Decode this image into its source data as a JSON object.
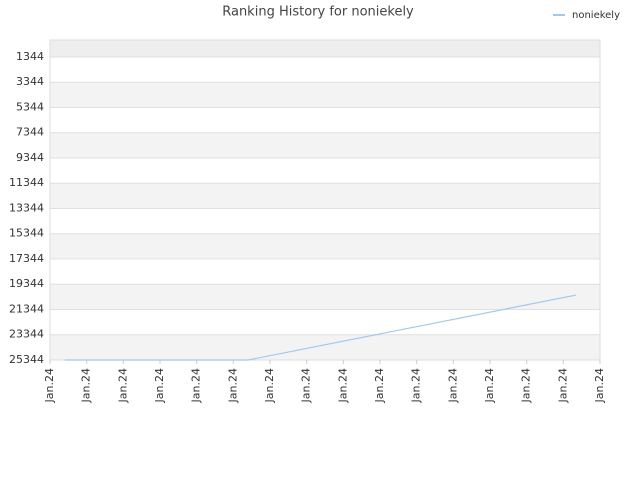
{
  "chart_data": {
    "type": "line",
    "title": "Ranking History for noniekely",
    "x": [
      0.4,
      5.4,
      14.35
    ],
    "series": [
      {
        "name": "noniekely",
        "color": "#a0c8f0",
        "values": [
          25344,
          25344,
          20200
        ]
      }
    ],
    "xlim": [
      0,
      15
    ],
    "xticks": [
      {
        "value": 0,
        "label": "Jan.24"
      },
      {
        "value": 1,
        "label": "Jan.24"
      },
      {
        "value": 2,
        "label": "Jan.24"
      },
      {
        "value": 3,
        "label": "Jan.24"
      },
      {
        "value": 4,
        "label": "Jan.24"
      },
      {
        "value": 5,
        "label": "Jan.24"
      },
      {
        "value": 6,
        "label": "Jan.24"
      },
      {
        "value": 7,
        "label": "Jan.24"
      },
      {
        "value": 8,
        "label": "Jan.24"
      },
      {
        "value": 9,
        "label": "Jan.24"
      },
      {
        "value": 10,
        "label": "Jan.24"
      },
      {
        "value": 11,
        "label": "Jan.24"
      },
      {
        "value": 12,
        "label": "Jan.24"
      },
      {
        "value": 13,
        "label": "Jan.24"
      },
      {
        "value": 14,
        "label": "Jan.24"
      },
      {
        "value": 15,
        "label": "Jan.24"
      }
    ],
    "ylim": [
      25344,
      0
    ],
    "yticks": [
      1344,
      3344,
      5344,
      7344,
      9344,
      11344,
      13344,
      15344,
      17344,
      19344,
      21344,
      23344,
      25344
    ],
    "grid": true,
    "legend": "top-right"
  }
}
